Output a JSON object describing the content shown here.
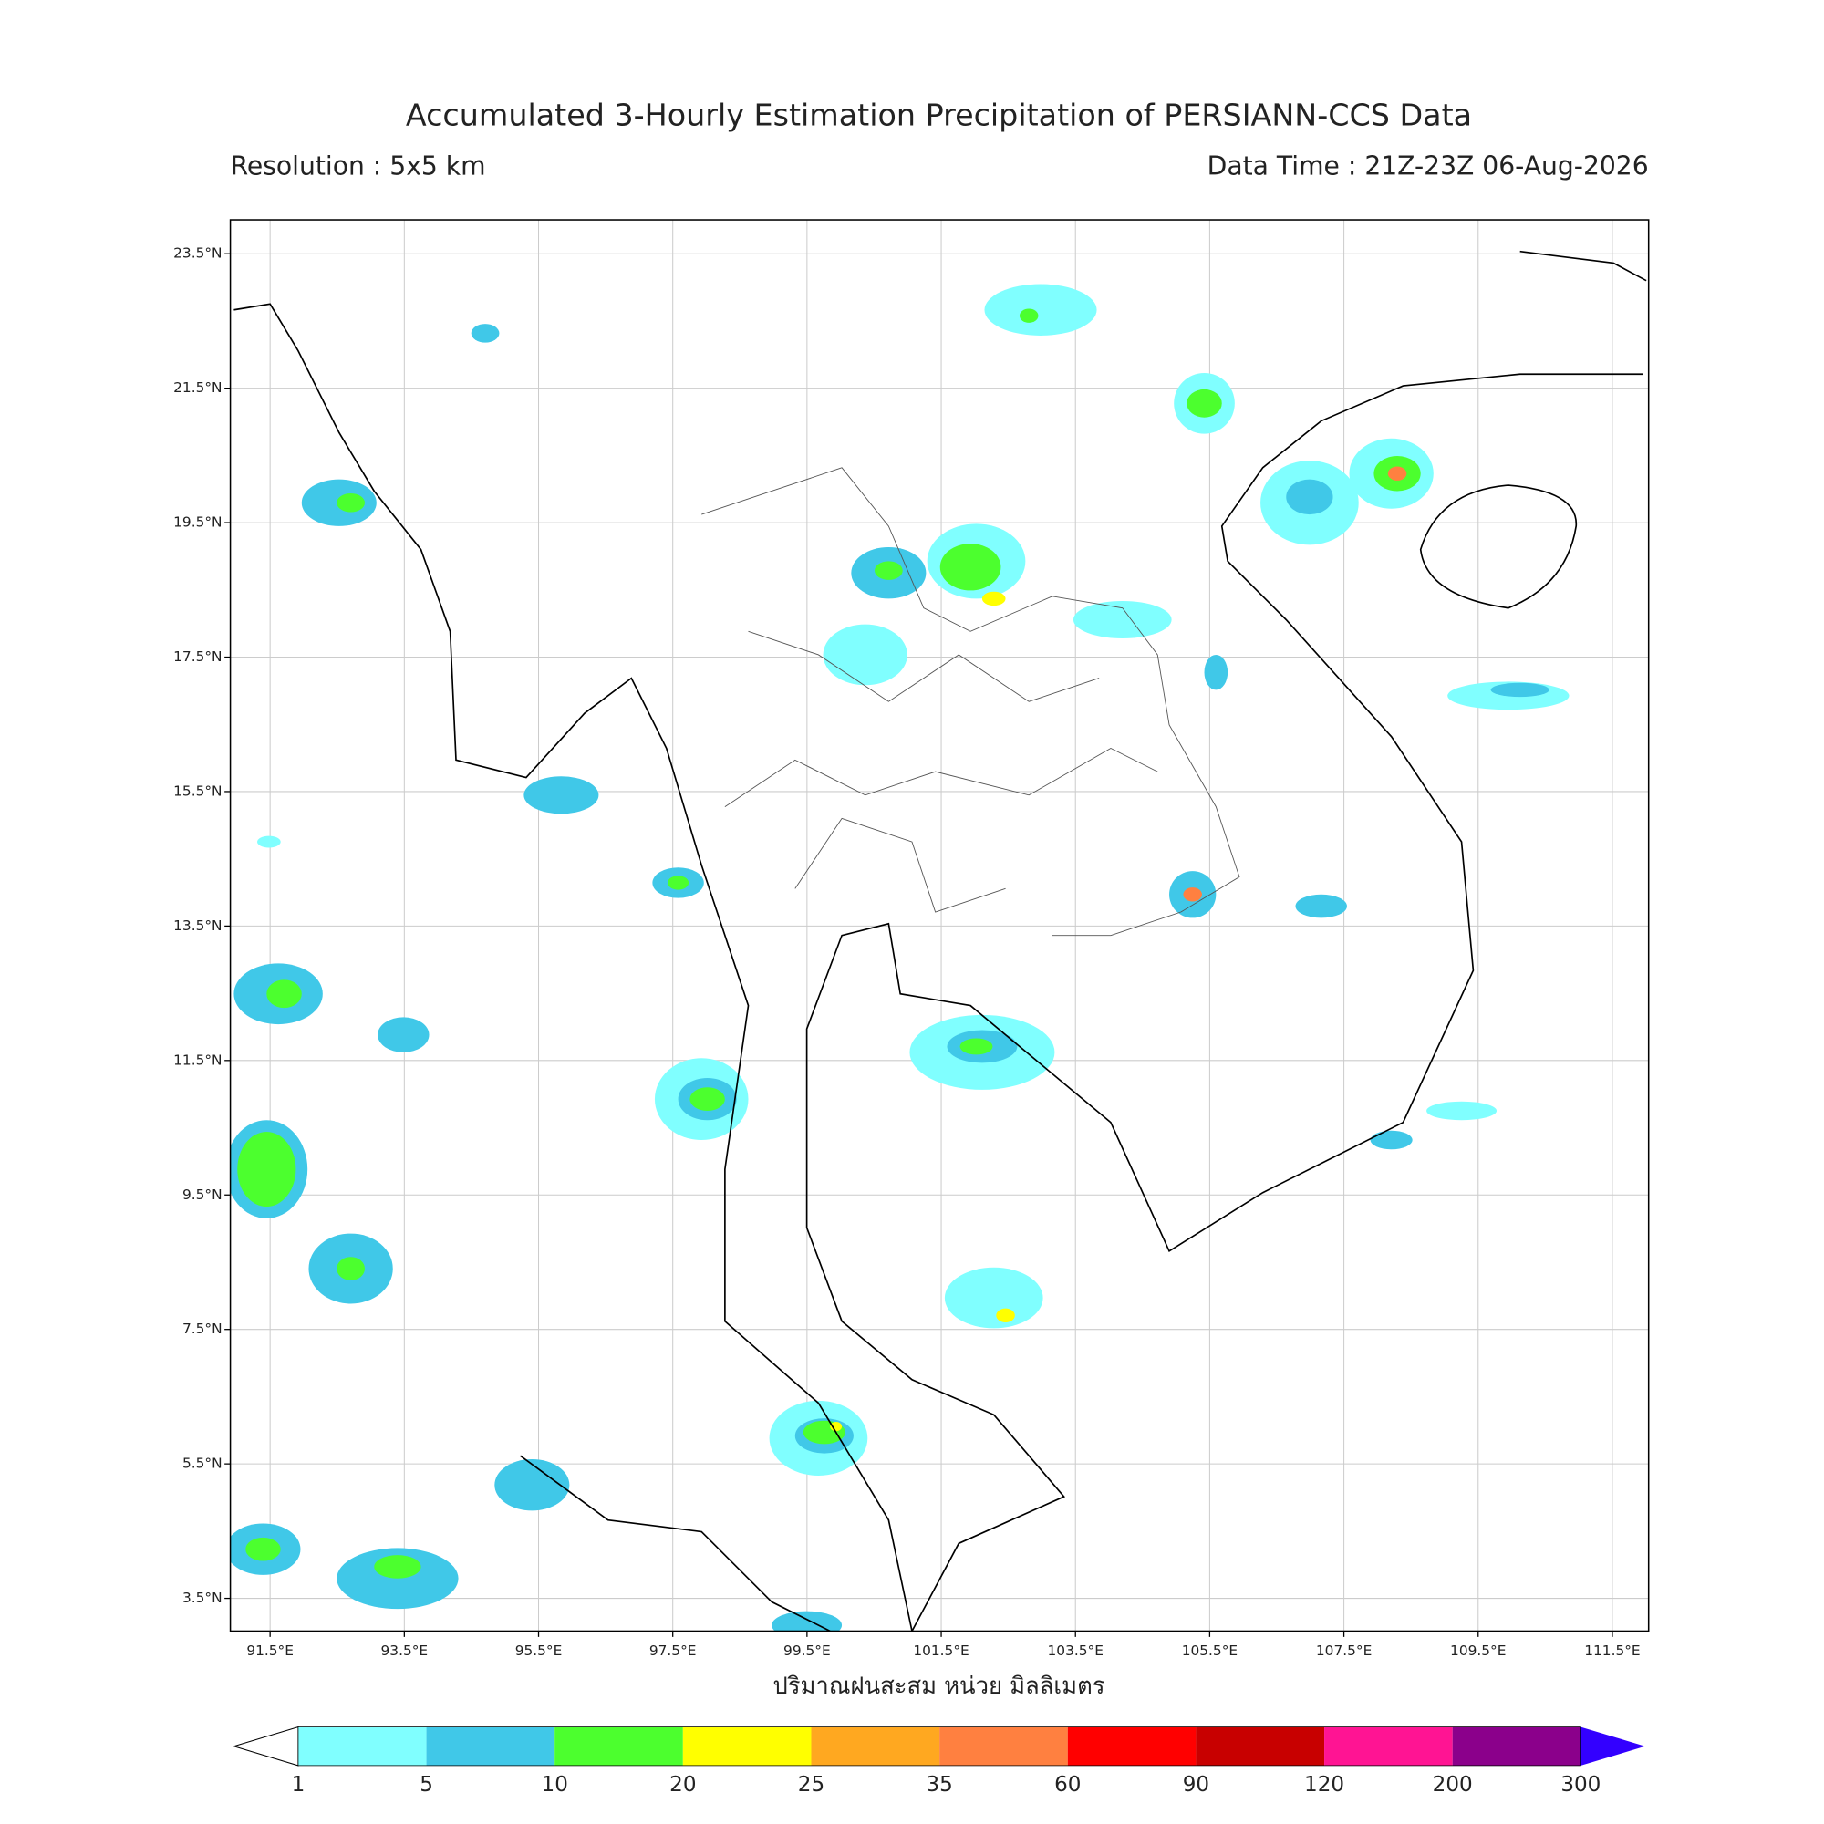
{
  "title": "Accumulated 3-Hourly Estimation Precipitation of PERSIANN-CCS Data",
  "resolution": "Resolution : 5x5 km",
  "data_time": "Data Time : 21Z-23Z 06-Aug-2026",
  "x_label": "ปริมาณฝนสะสม หน่วย มิลลิเมตร",
  "lat_labels": [
    "23.5°N",
    "21.5°N",
    "19.5°N",
    "17.5°N",
    "15.5°N",
    "13.5°N",
    "11.5°N",
    "9.5°N",
    "7.5°N",
    "5.5°N",
    "3.5°N"
  ],
  "lon_labels": [
    "91.5°E",
    "93.5°E",
    "95.5°E",
    "97.5°E",
    "99.5°E",
    "101.5°E",
    "103.5°E",
    "105.5°E",
    "107.5°E",
    "109.5°E",
    "111.5°E"
  ],
  "colorbar": {
    "levels": [
      1,
      5,
      10,
      20,
      25,
      35,
      60,
      90,
      120,
      200,
      300
    ],
    "colors": [
      "#80ffff",
      "#40c8e8",
      "#4cff2e",
      "#ffff00",
      "#ffa820",
      "#ff8040",
      "#ff0000",
      "#c80000",
      "#ff1493",
      "#8b008b"
    ],
    "under_color": "#ffffff",
    "over_color": "#3300ff"
  }
}
